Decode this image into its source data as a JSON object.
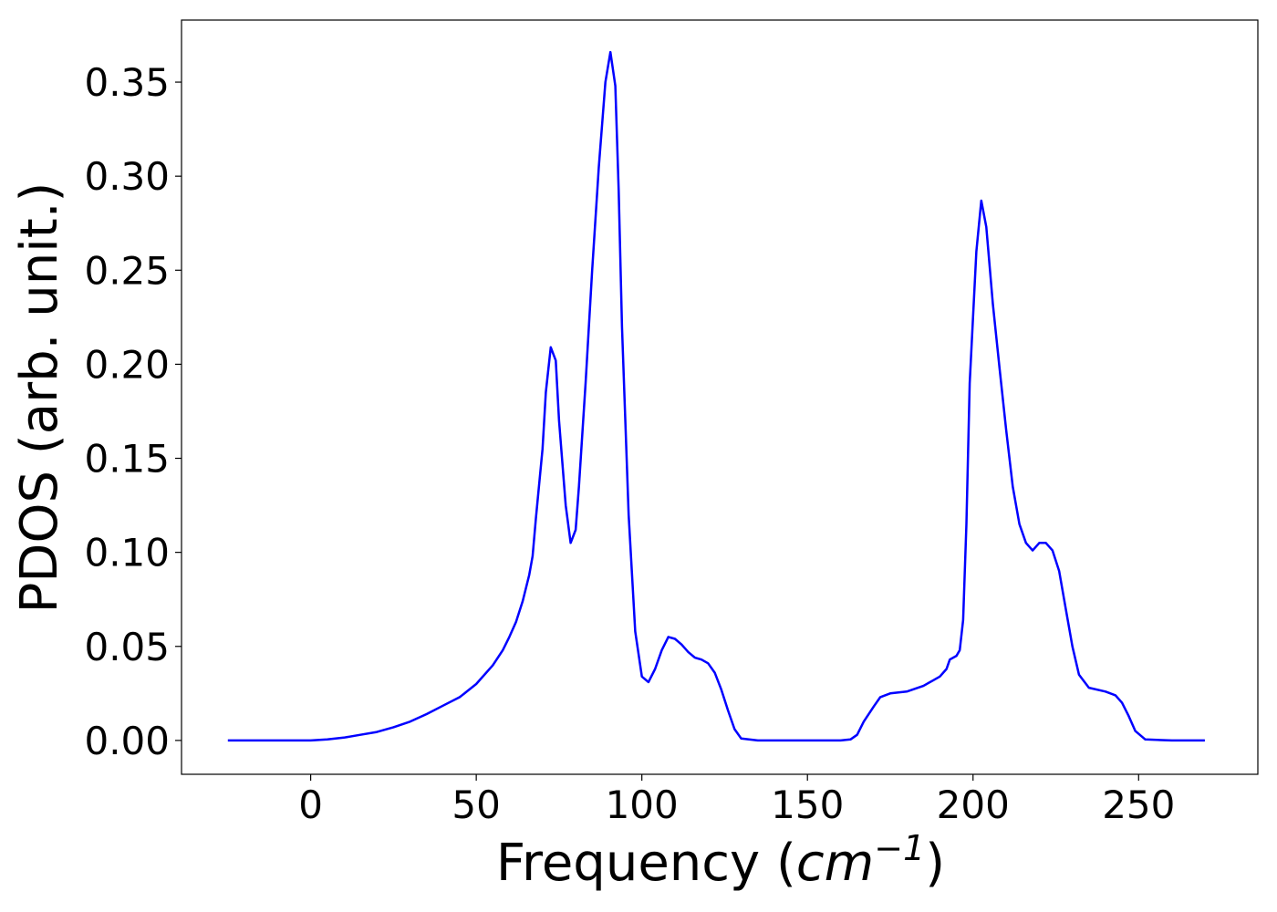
{
  "chart_data": {
    "type": "line",
    "title": "",
    "xlabel": "Frequency",
    "xlabel_unit_open": "(",
    "xlabel_unit_base": "cm",
    "xlabel_unit_exp": "−1",
    "xlabel_unit_close": ")",
    "ylabel": "PDOS (arb. unit.)",
    "xlim": [
      -39,
      286
    ],
    "ylim": [
      -0.018,
      0.383
    ],
    "xticks": [
      0,
      50,
      100,
      150,
      200,
      250
    ],
    "xtick_labels": [
      "0",
      "50",
      "100",
      "150",
      "200",
      "250"
    ],
    "yticks": [
      0.0,
      0.05,
      0.1,
      0.15,
      0.2,
      0.25,
      0.3,
      0.35
    ],
    "ytick_labels": [
      "0.00",
      "0.05",
      "0.10",
      "0.15",
      "0.20",
      "0.25",
      "0.30",
      "0.35"
    ],
    "grid": false,
    "legend": "none",
    "line_color": "#0000ff",
    "series": [
      {
        "x": [
          -25,
          0,
          5,
          10,
          15,
          20,
          25,
          30,
          35,
          40,
          45,
          50,
          55,
          58,
          60,
          62,
          64,
          66,
          67,
          68,
          70,
          71,
          72.5,
          74,
          75,
          77,
          78.5,
          80,
          81,
          83,
          85,
          87,
          89,
          90.5,
          92,
          93,
          94,
          96,
          98,
          100,
          102,
          104,
          106,
          108,
          110,
          112,
          114,
          116,
          118,
          120,
          122,
          124,
          126,
          128,
          130,
          135,
          160,
          163,
          165,
          167,
          170,
          172,
          175,
          180,
          185,
          188,
          190,
          192,
          193,
          195,
          196,
          197,
          198,
          199,
          201,
          202.5,
          204,
          206,
          208,
          210,
          212,
          214,
          216,
          218,
          220,
          222,
          224,
          226,
          228,
          230,
          232,
          235,
          240,
          243,
          245,
          247,
          249,
          252,
          260,
          270
        ],
        "y": [
          0.0,
          0.0,
          0.0005,
          0.0015,
          0.003,
          0.0045,
          0.007,
          0.01,
          0.014,
          0.0185,
          0.023,
          0.03,
          0.04,
          0.048,
          0.055,
          0.063,
          0.074,
          0.088,
          0.098,
          0.118,
          0.155,
          0.185,
          0.209,
          0.202,
          0.17,
          0.125,
          0.105,
          0.112,
          0.135,
          0.19,
          0.25,
          0.305,
          0.35,
          0.366,
          0.348,
          0.292,
          0.22,
          0.12,
          0.058,
          0.034,
          0.031,
          0.038,
          0.048,
          0.055,
          0.054,
          0.051,
          0.047,
          0.044,
          0.043,
          0.041,
          0.036,
          0.027,
          0.016,
          0.006,
          0.001,
          0.0,
          0.0,
          0.0005,
          0.003,
          0.01,
          0.018,
          0.023,
          0.025,
          0.026,
          0.029,
          0.032,
          0.034,
          0.038,
          0.043,
          0.045,
          0.048,
          0.064,
          0.115,
          0.19,
          0.26,
          0.287,
          0.273,
          0.232,
          0.198,
          0.165,
          0.135,
          0.115,
          0.105,
          0.101,
          0.105,
          0.105,
          0.101,
          0.09,
          0.07,
          0.05,
          0.035,
          0.028,
          0.026,
          0.024,
          0.02,
          0.013,
          0.005,
          0.0005,
          0.0,
          0.0
        ]
      }
    ]
  }
}
